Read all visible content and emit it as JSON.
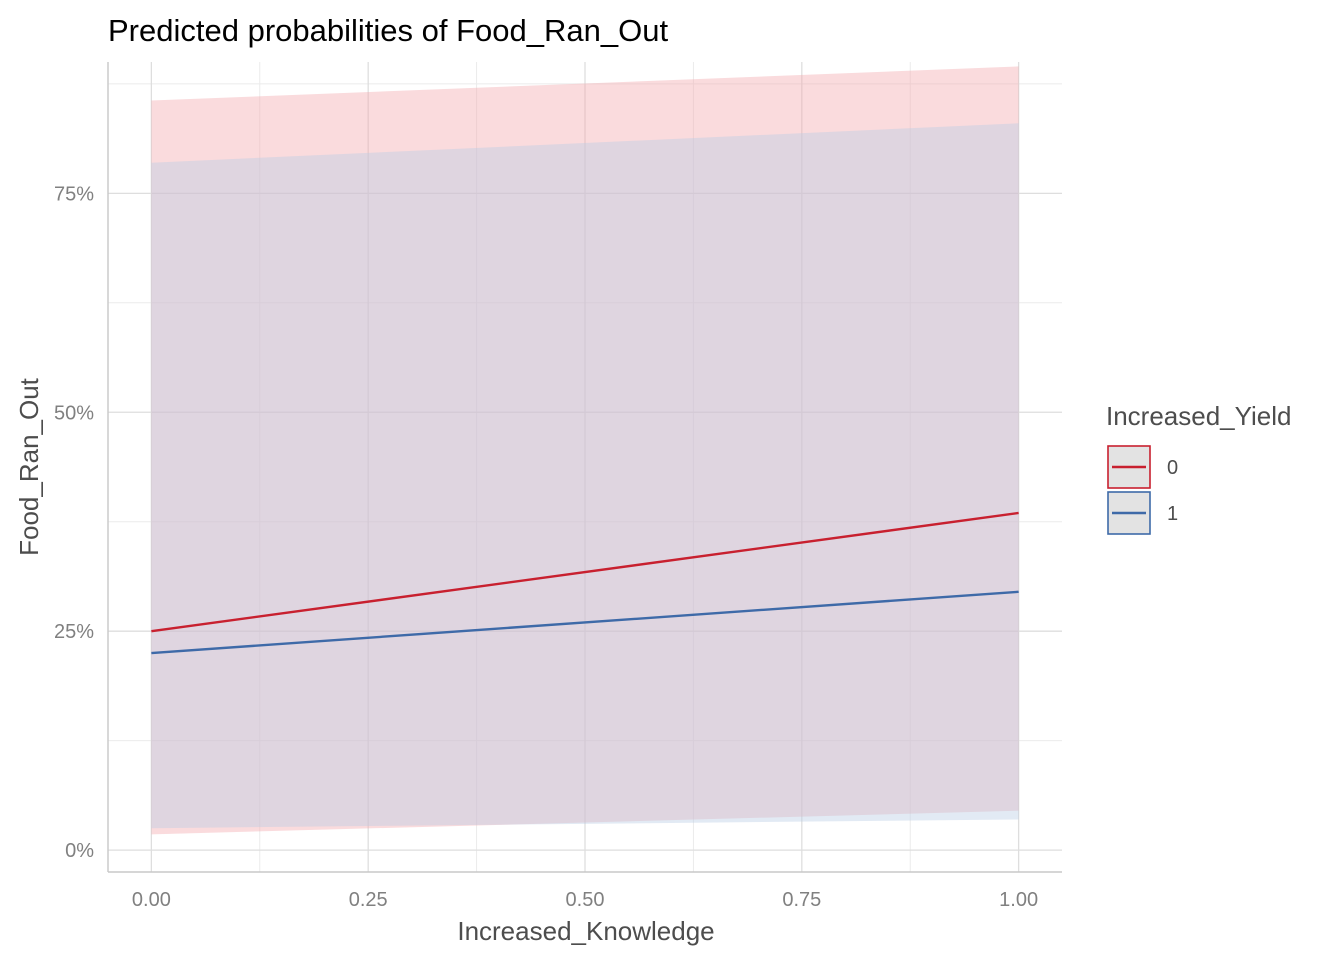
{
  "chart_data": {
    "type": "line",
    "title": "Predicted probabilities of Food_Ran_Out",
    "xlabel": "Increased_Knowledge",
    "ylabel": "Food_Ran_Out",
    "xlim": [
      -0.05,
      1.05
    ],
    "ylim": [
      -0.025,
      0.9
    ],
    "x_ticks": [
      0.0,
      0.25,
      0.5,
      0.75,
      1.0
    ],
    "x_tick_labels": [
      "0.00",
      "0.25",
      "0.50",
      "0.75",
      "1.00"
    ],
    "y_ticks": [
      0.0,
      0.25,
      0.5,
      0.75
    ],
    "y_tick_labels": [
      "0%",
      "25%",
      "50%",
      "75%"
    ],
    "y_minor_ticks": [
      0.125,
      0.375,
      0.625,
      0.875
    ],
    "x_minor_ticks": [
      0.125,
      0.375,
      0.625,
      0.875
    ],
    "legend_title": "Increased_Yield",
    "legend_position": "right",
    "series": [
      {
        "name": "0",
        "color": "#C8202F",
        "band_color": "#F4AAAE",
        "x": [
          0.0,
          1.0
        ],
        "values": [
          0.25,
          0.385
        ],
        "lower": [
          0.018,
          0.045
        ],
        "upper": [
          0.856,
          0.895
        ]
      },
      {
        "name": "1",
        "color": "#3E6AA8",
        "band_color": "#B9CDE5",
        "x": [
          0.0,
          1.0
        ],
        "values": [
          0.225,
          0.295
        ],
        "lower": [
          0.025,
          0.035
        ],
        "upper": [
          0.785,
          0.83
        ]
      }
    ]
  }
}
